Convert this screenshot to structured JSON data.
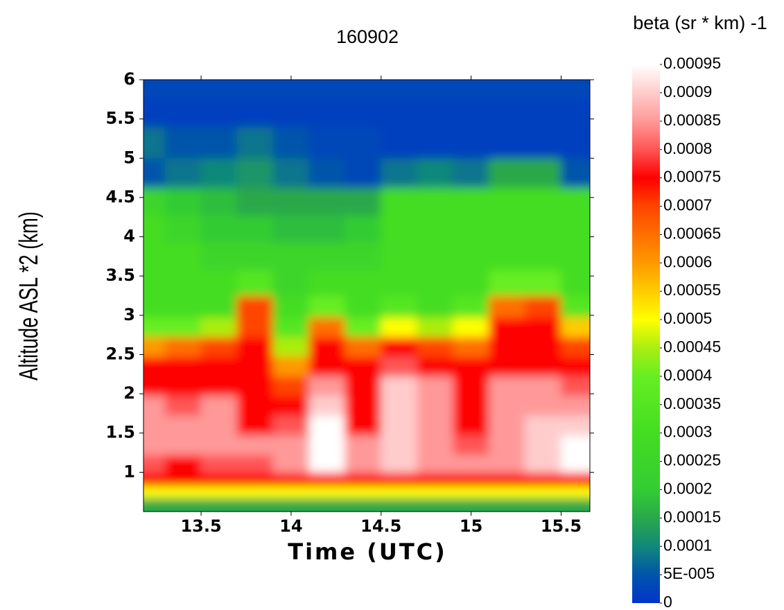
{
  "chart_data": {
    "type": "heatmap",
    "title": "160902",
    "x_label": "Time (UTC)",
    "y_label": "Altitude ASL *2 (km)",
    "colorbar_title": "beta (sr * km) -1",
    "xlim": [
      13.18,
      15.66
    ],
    "xticks": [
      13.5,
      14,
      14.5,
      15,
      15.5
    ],
    "ylim": [
      0.5,
      6
    ],
    "yticks": [
      1,
      1.5,
      2,
      2.5,
      3,
      3.5,
      4,
      4.5,
      5,
      5.5,
      6
    ],
    "clim": [
      0,
      0.00095
    ],
    "cticks": [
      0,
      {
        "value": 5e-05,
        "label": "5E-005"
      },
      0.0001,
      0.00015,
      0.0002,
      0.00025,
      0.0003,
      0.00035,
      0.0004,
      0.00045,
      0.0005,
      0.00055,
      0.0006,
      0.00065,
      0.0007,
      0.00075,
      0.0008,
      0.00085,
      0.0009,
      0.00095
    ],
    "colorscale": [
      [
        0,
        "#0033cc"
      ],
      [
        5e-05,
        "#0055aa"
      ],
      [
        0.0001,
        "#11887a"
      ],
      [
        0.00015,
        "#2aa84a"
      ],
      [
        0.0002,
        "#33cc33"
      ],
      [
        0.0003,
        "#44dd22"
      ],
      [
        0.0004,
        "#66ee22"
      ],
      [
        0.00045,
        "#aaee11"
      ],
      [
        0.0005,
        "#ffff00"
      ],
      [
        0.00055,
        "#ffcc00"
      ],
      [
        0.0006,
        "#ff9900"
      ],
      [
        0.0007,
        "#ff4400"
      ],
      [
        0.00075,
        "#ff0000"
      ],
      [
        0.0008,
        "#ff5555"
      ],
      [
        0.00085,
        "#ff9999"
      ],
      [
        0.0009,
        "#ffcccc"
      ],
      [
        0.00095,
        "#ffffff"
      ]
    ],
    "x": [
      13.2,
      13.4,
      13.6,
      13.8,
      14.0,
      14.2,
      14.4,
      14.6,
      14.8,
      15.0,
      15.2,
      15.4,
      15.6
    ],
    "y": [
      0.6,
      0.75,
      0.9,
      1.1,
      1.35,
      1.6,
      1.85,
      2.1,
      2.35,
      2.6,
      2.85,
      3.1,
      3.4,
      3.75,
      4.1,
      4.45,
      4.8,
      5.2,
      5.6,
      5.9
    ],
    "z": [
      [
        0.00015,
        0.00015,
        0.00015,
        0.00015,
        0.00015,
        0.00015,
        0.00015,
        0.00015,
        0.00015,
        0.00015,
        0.00015,
        0.00015,
        0.00015
      ],
      [
        0.0005,
        0.0005,
        0.0005,
        0.0005,
        0.0005,
        0.0005,
        0.0005,
        0.0005,
        0.0005,
        0.0005,
        0.0005,
        0.0005,
        0.0005
      ],
      [
        0.00075,
        0.00075,
        0.00075,
        0.00075,
        0.00075,
        0.00075,
        0.00075,
        0.00075,
        0.00075,
        0.00075,
        0.00075,
        0.00075,
        0.00075
      ],
      [
        0.0008,
        0.00075,
        0.0008,
        0.0008,
        0.00085,
        0.00095,
        0.00085,
        0.0009,
        0.00085,
        0.00085,
        0.00085,
        0.0009,
        0.00095
      ],
      [
        0.00085,
        0.00085,
        0.00085,
        0.00085,
        0.00085,
        0.00095,
        0.00085,
        0.0009,
        0.00085,
        0.0008,
        0.00085,
        0.0009,
        0.00095
      ],
      [
        0.00085,
        0.00085,
        0.00085,
        0.00075,
        0.0008,
        0.00095,
        0.00075,
        0.0009,
        0.00085,
        0.00075,
        0.00085,
        0.0009,
        0.0009
      ],
      [
        0.00085,
        0.0008,
        0.00085,
        0.00075,
        0.00075,
        0.0009,
        0.00075,
        0.0009,
        0.00085,
        0.00075,
        0.00085,
        0.00085,
        0.00085
      ],
      [
        0.00075,
        0.00075,
        0.00075,
        0.00075,
        0.0007,
        0.00085,
        0.00075,
        0.0009,
        0.00085,
        0.00075,
        0.00085,
        0.00085,
        0.0008
      ],
      [
        0.00075,
        0.00075,
        0.00075,
        0.00075,
        0.0006,
        0.00075,
        0.00075,
        0.0008,
        0.00075,
        0.00075,
        0.00075,
        0.00075,
        0.00075
      ],
      [
        0.0006,
        0.00065,
        0.0007,
        0.00075,
        0.00045,
        0.00075,
        0.00065,
        0.00075,
        0.0007,
        0.00065,
        0.00075,
        0.00075,
        0.0007
      ],
      [
        0.0004,
        0.0004,
        0.00045,
        0.0007,
        0.00035,
        0.00065,
        0.0004,
        0.0005,
        0.00045,
        0.0005,
        0.00075,
        0.00075,
        0.00055
      ],
      [
        0.0003,
        0.0003,
        0.0003,
        0.0007,
        0.0003,
        0.0004,
        0.0003,
        0.00035,
        0.0003,
        0.00035,
        0.00065,
        0.0007,
        0.00035
      ],
      [
        0.0003,
        0.0003,
        0.0003,
        0.00035,
        0.00025,
        0.0003,
        0.0003,
        0.0003,
        0.0003,
        0.0003,
        0.0004,
        0.0004,
        0.0003
      ],
      [
        0.0003,
        0.0003,
        0.00025,
        0.00025,
        0.00025,
        0.00025,
        0.00025,
        0.0003,
        0.0003,
        0.0003,
        0.0003,
        0.0003,
        0.0003
      ],
      [
        0.0003,
        0.00025,
        0.0002,
        0.0002,
        0.00018,
        0.00018,
        0.0002,
        0.0003,
        0.0003,
        0.0003,
        0.0003,
        0.0003,
        0.0003
      ],
      [
        0.00025,
        0.0002,
        0.00018,
        0.00015,
        0.00015,
        0.00015,
        0.00015,
        0.0003,
        0.0003,
        0.0003,
        0.0003,
        0.0003,
        0.0003
      ],
      [
        5e-05,
        8e-05,
        0.0001,
        0.00012,
        8e-05,
        5e-05,
        3e-05,
        8e-05,
        0.0001,
        8e-05,
        0.00015,
        0.00015,
        5e-05
      ],
      [
        8e-05,
        5e-05,
        5e-05,
        8e-05,
        5e-05,
        3e-05,
        3e-05,
        2e-05,
        2e-05,
        2e-05,
        2e-05,
        2e-05,
        2e-05
      ],
      [
        2e-05,
        2e-05,
        2e-05,
        2e-05,
        2e-05,
        2e-05,
        2e-05,
        2e-05,
        2e-05,
        2e-05,
        2e-05,
        2e-05,
        2e-05
      ],
      [
        3e-05,
        3e-05,
        3e-05,
        3e-05,
        3e-05,
        3e-05,
        3e-05,
        3e-05,
        3e-05,
        3e-05,
        3e-05,
        3e-05,
        3e-05
      ]
    ]
  }
}
